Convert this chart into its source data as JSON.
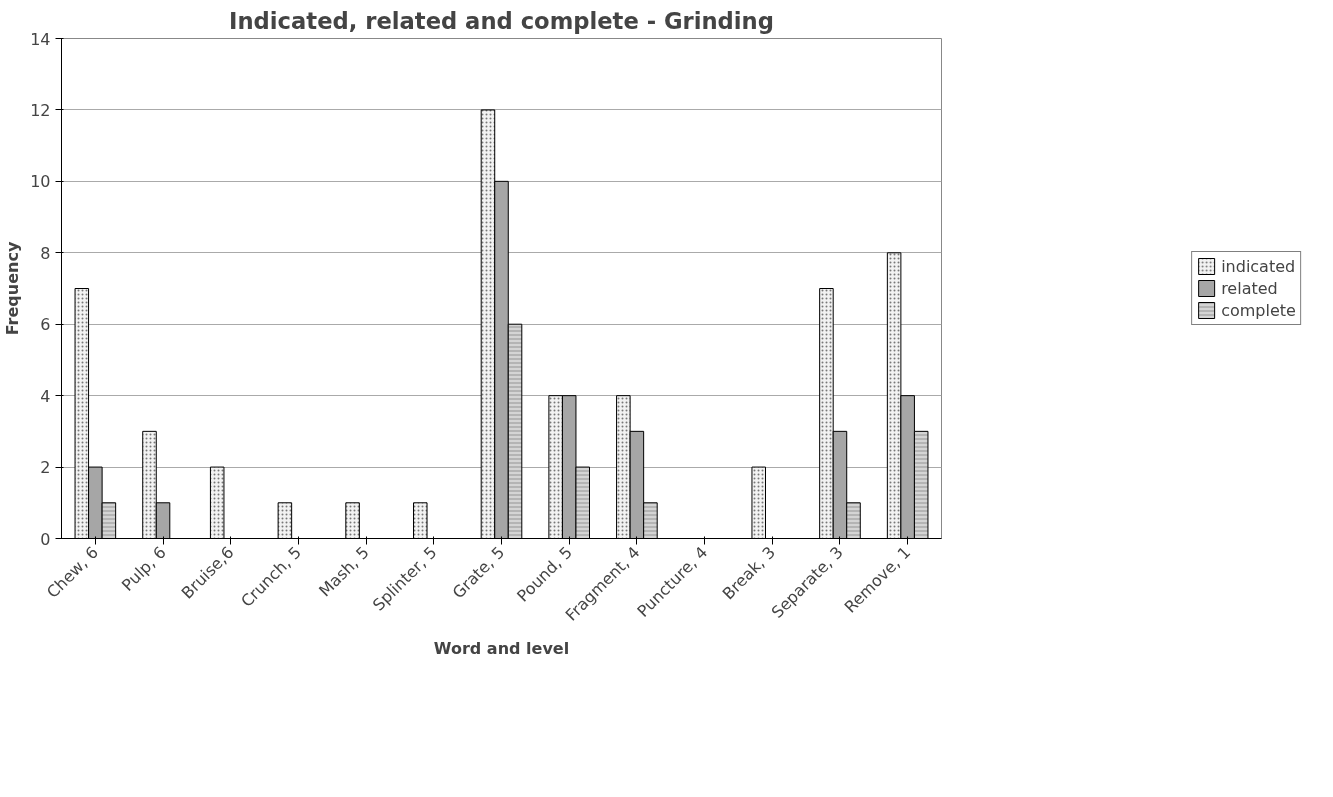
{
  "chart_data": {
    "type": "bar",
    "title": "Indicated, related and complete - Grinding",
    "xlabel": "Word and level",
    "ylabel": "Frequency",
    "categories": [
      "Chew, 6",
      "Pulp, 6",
      "Bruise,6",
      "Crunch, 5",
      "Mash, 5",
      "Splinter, 5",
      "Grate, 5",
      "Pound, 5",
      "Fragment, 4",
      "Puncture, 4",
      "Break, 3",
      "Separate, 3",
      "Remove, 1"
    ],
    "series": [
      {
        "name": "indicated",
        "color": "#f2f2f2",
        "values": [
          7,
          3,
          2,
          1,
          1,
          1,
          12,
          4,
          4,
          0,
          2,
          7,
          8
        ]
      },
      {
        "name": "related",
        "color": "#a6a6a6",
        "values": [
          2,
          1,
          0,
          0,
          0,
          0,
          10,
          4,
          3,
          0,
          0,
          3,
          4
        ]
      },
      {
        "name": "complete",
        "color": "#d4d4d4",
        "values": [
          1,
          0,
          0,
          0,
          0,
          0,
          6,
          2,
          1,
          0,
          0,
          1,
          3
        ]
      }
    ],
    "ylim": [
      0,
      14
    ],
    "yticks": [
      0,
      2,
      4,
      6,
      8,
      10,
      12,
      14
    ],
    "grid": "y",
    "legend": "right"
  }
}
